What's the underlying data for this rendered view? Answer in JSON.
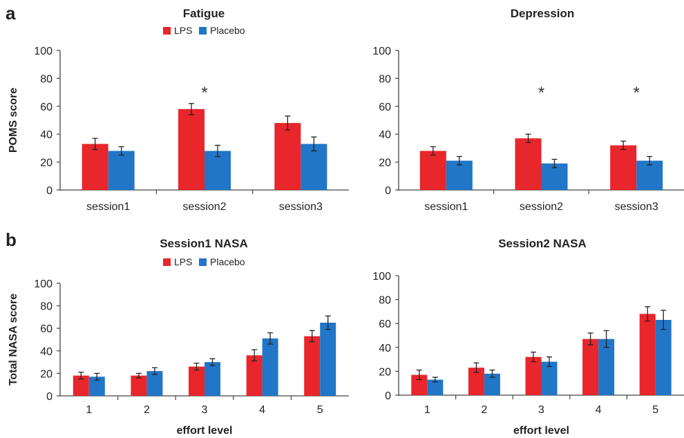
{
  "panels": {
    "a": "a",
    "b": "b"
  },
  "chart_data": [
    {
      "type": "bar",
      "title": "Fatigue",
      "ylabel": "POMS score",
      "xlabel": "",
      "ylim": [
        0,
        100
      ],
      "yticks": [
        0,
        20,
        40,
        60,
        80,
        100
      ],
      "categories": [
        "session1",
        "session2",
        "session3"
      ],
      "series": [
        {
          "name": "LPS",
          "color": "#e8262b",
          "values": [
            33,
            58,
            48
          ],
          "errors": [
            4,
            4,
            5
          ]
        },
        {
          "name": "Placebo",
          "color": "#2176c7",
          "values": [
            28,
            28,
            33
          ],
          "errors": [
            3,
            4,
            5
          ]
        }
      ],
      "significance": [
        "",
        "*",
        ""
      ],
      "legend": "top"
    },
    {
      "type": "bar",
      "title": "Depression",
      "ylabel": "",
      "xlabel": "",
      "ylim": [
        0,
        100
      ],
      "yticks": [
        0,
        20,
        40,
        60,
        80,
        100
      ],
      "categories": [
        "session1",
        "session2",
        "session3"
      ],
      "series": [
        {
          "name": "LPS",
          "color": "#e8262b",
          "values": [
            28,
            37,
            32
          ],
          "errors": [
            3,
            3,
            3
          ]
        },
        {
          "name": "Placebo",
          "color": "#2176c7",
          "values": [
            21,
            19,
            21
          ],
          "errors": [
            3,
            3,
            3
          ]
        }
      ],
      "significance": [
        "",
        "*",
        "*"
      ]
    },
    {
      "type": "bar",
      "title": "Session1 NASA",
      "ylabel": "Total NASA  score",
      "xlabel": "effort level",
      "ylim": [
        0,
        100
      ],
      "yticks": [
        0,
        20,
        40,
        60,
        80,
        100
      ],
      "categories": [
        "1",
        "2",
        "3",
        "4",
        "5"
      ],
      "series": [
        {
          "name": "LPS",
          "color": "#e8262b",
          "values": [
            18,
            18,
            26,
            36,
            53
          ],
          "errors": [
            3,
            2,
            3,
            5,
            5
          ]
        },
        {
          "name": "Placebo",
          "color": "#2176c7",
          "values": [
            17,
            22,
            30,
            51,
            65
          ],
          "errors": [
            3,
            3,
            3,
            5,
            6
          ]
        }
      ],
      "legend": "top"
    },
    {
      "type": "bar",
      "title": "Session2 NASA",
      "ylabel": "",
      "xlabel": "effort level",
      "ylim": [
        0,
        100
      ],
      "yticks": [
        0,
        20,
        40,
        60,
        80,
        100
      ],
      "categories": [
        "1",
        "2",
        "3",
        "4",
        "5"
      ],
      "series": [
        {
          "name": "LPS",
          "color": "#e8262b",
          "values": [
            17,
            23,
            32,
            47,
            68
          ],
          "errors": [
            4,
            4,
            4,
            5,
            6
          ]
        },
        {
          "name": "Placebo",
          "color": "#2176c7",
          "values": [
            13,
            18,
            28,
            47,
            63
          ],
          "errors": [
            2,
            3,
            4,
            7,
            8
          ]
        }
      ]
    }
  ]
}
